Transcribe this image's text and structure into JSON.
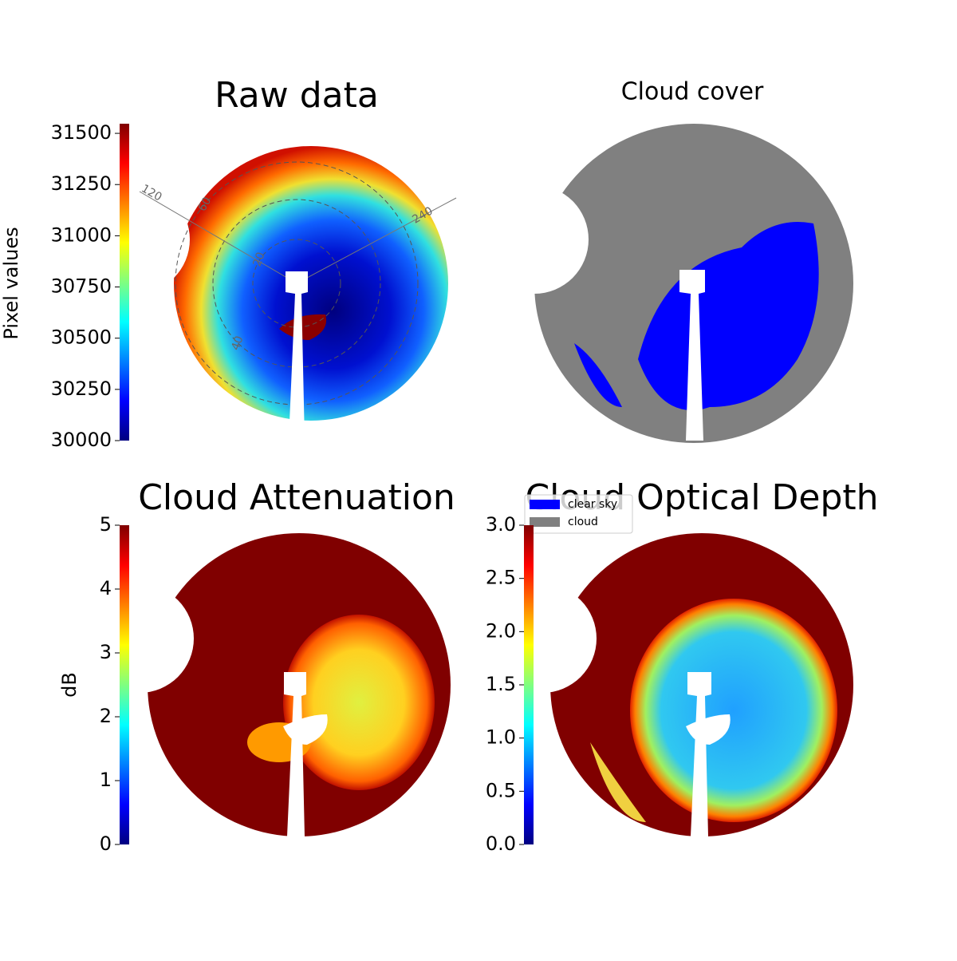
{
  "chart_data": [
    {
      "type": "image",
      "title": "Raw data",
      "annotations": [
        "120",
        "60",
        "20",
        "40",
        "240"
      ],
      "colorbar": {
        "label": "Pixel values",
        "colormap": "jet",
        "lim": [
          30000,
          31547
        ],
        "ticks": [
          30000,
          30250,
          30500,
          30750,
          31000,
          31250,
          31500
        ]
      }
    },
    {
      "type": "image",
      "title": "Cloud cover",
      "series": [
        {
          "name": "clear sky",
          "color": "#0000ff"
        },
        {
          "name": "cloud",
          "color": "#808080"
        }
      ]
    },
    {
      "type": "image",
      "title": "Cloud Attenuation",
      "colorbar": {
        "label": "dB",
        "colormap": "jet",
        "lim": [
          0,
          5
        ],
        "ticks": [
          0,
          1,
          2,
          3,
          4,
          5
        ]
      }
    },
    {
      "type": "image",
      "title": "Cloud Optical Depth",
      "colorbar": {
        "label": null,
        "colormap": "jet",
        "lim": [
          0,
          3
        ],
        "ticks": [
          {
            "value": 0,
            "label": "0.0"
          },
          0.5,
          {
            "value": 1,
            "label": "1.0"
          },
          1.5,
          {
            "value": 2,
            "label": "2.0"
          },
          2.5,
          {
            "value": 3,
            "label": "3.0"
          }
        ]
      }
    }
  ]
}
